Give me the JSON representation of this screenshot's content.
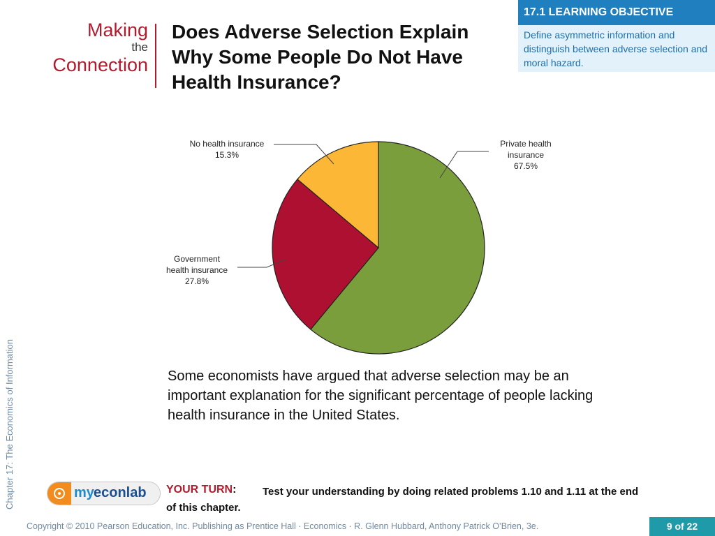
{
  "header": {
    "making": "Making",
    "the": "the",
    "connection": "Connection",
    "title_lines": [
      "Does Adverse Selection Explain",
      "Why Some People Do Not Have",
      "Health  Insurance?"
    ]
  },
  "learning_objective": {
    "heading": "17.1 LEARNING OBJECTIVE",
    "text": "Define asymmetric information and distinguish between adverse selection and moral hazard."
  },
  "side_caption": "Chapter 17:  The Economics of Information",
  "paragraph": "Some economists have argued that adverse selection may be an important explanation for the significant percentage of people lacking health insurance in the United States.",
  "your_turn": {
    "label": "YOUR TURN",
    "colon": ":",
    "text": "Test your understanding by doing related problems 1.10 and 1.11 at the end of this chapter."
  },
  "logo": {
    "my": "my",
    "econ": "econlab"
  },
  "footer": {
    "copyright": "Copyright © 2010 Pearson Education, Inc. Publishing as Prentice Hall · Economics · R. Glenn Hubbard, Anthony Patrick O’Brien, 3e.",
    "page": "9 of 22"
  },
  "colors": {
    "private": "#7a9e3b",
    "government": "#ad1030",
    "none": "#fbb735",
    "accent_red": "#b01c2e",
    "accent_blue": "#1f7fbf"
  },
  "chart_data": {
    "type": "pie",
    "slices": [
      {
        "label_lines": [
          "Private health",
          "insurance",
          "67.5%"
        ],
        "value": 67.5,
        "color": "#7a9e3b"
      },
      {
        "label_lines": [
          "Government",
          "health insurance",
          "27.8%"
        ],
        "value": 27.8,
        "color": "#ad1030"
      },
      {
        "label_lines": [
          "No health insurance",
          "15.3%"
        ],
        "value": 15.3,
        "color": "#fbb735"
      }
    ]
  }
}
